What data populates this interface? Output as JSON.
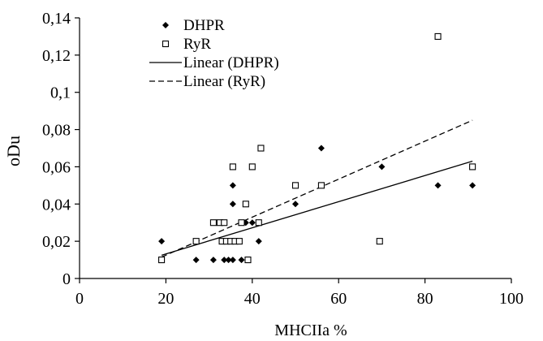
{
  "chart_data": {
    "type": "scatter",
    "title": "",
    "xlabel": "MHCIIa %",
    "ylabel": "oDu",
    "xlim": [
      0,
      100
    ],
    "ylim": [
      0,
      0.14
    ],
    "x_ticks": [
      0,
      20,
      40,
      60,
      80,
      100
    ],
    "x_tick_labels": [
      "0",
      "20",
      "40",
      "60",
      "80",
      "100"
    ],
    "y_ticks": [
      0,
      0.02,
      0.04,
      0.06,
      0.08,
      0.1,
      0.12,
      0.14
    ],
    "y_tick_labels": [
      "0",
      "0,02",
      "0,04",
      "0,06",
      "0,08",
      "0,1",
      "0,12",
      "0,14"
    ],
    "grid": false,
    "legend_position": "top-left",
    "legend": [
      "DHPR",
      "RyR",
      "Linear (DHPR)",
      "Linear (RyR)"
    ],
    "series": [
      {
        "name": "DHPR",
        "marker": "diamond-filled",
        "color": "#000000",
        "points": [
          [
            19,
            0.02
          ],
          [
            27,
            0.01
          ],
          [
            31,
            0.01
          ],
          [
            33.5,
            0.01
          ],
          [
            34.5,
            0.01
          ],
          [
            35.5,
            0.01
          ],
          [
            35.5,
            0.04
          ],
          [
            35.5,
            0.05
          ],
          [
            37.5,
            0.01
          ],
          [
            38.5,
            0.03
          ],
          [
            40,
            0.03
          ],
          [
            41.5,
            0.02
          ],
          [
            50,
            0.04
          ],
          [
            56,
            0.07
          ],
          [
            70,
            0.06
          ],
          [
            83,
            0.05
          ],
          [
            91,
            0.05
          ]
        ]
      },
      {
        "name": "RyR",
        "marker": "square-open",
        "color": "#000000",
        "points": [
          [
            19,
            0.01
          ],
          [
            27,
            0.02
          ],
          [
            31,
            0.03
          ],
          [
            32.5,
            0.03
          ],
          [
            33.5,
            0.03
          ],
          [
            33,
            0.02
          ],
          [
            34,
            0.02
          ],
          [
            35,
            0.02
          ],
          [
            36,
            0.02
          ],
          [
            37,
            0.02
          ],
          [
            37.5,
            0.03
          ],
          [
            38.5,
            0.04
          ],
          [
            39,
            0.01
          ],
          [
            35.5,
            0.06
          ],
          [
            40,
            0.06
          ],
          [
            41.5,
            0.03
          ],
          [
            42,
            0.07
          ],
          [
            50,
            0.05
          ],
          [
            56,
            0.05
          ],
          [
            69.5,
            0.02
          ],
          [
            83,
            0.13
          ],
          [
            91,
            0.06
          ]
        ]
      }
    ],
    "trendlines": [
      {
        "name": "Linear (DHPR)",
        "style": "solid",
        "x": [
          19,
          91
        ],
        "y": [
          0.0125,
          0.063
        ]
      },
      {
        "name": "Linear (RyR)",
        "style": "dashed",
        "x": [
          19,
          91
        ],
        "y": [
          0.0115,
          0.085
        ]
      }
    ]
  }
}
